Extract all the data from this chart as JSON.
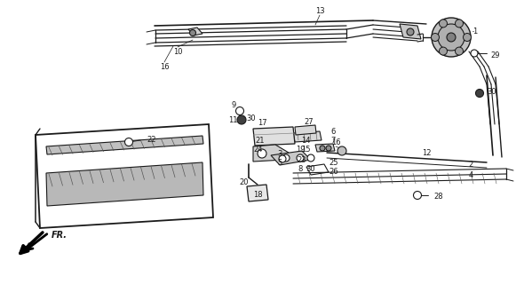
{
  "background_color": "#ffffff",
  "fig_width": 5.9,
  "fig_height": 3.2,
  "dpi": 100,
  "line_color": "#1a1a1a",
  "label_fontsize": 6.0
}
